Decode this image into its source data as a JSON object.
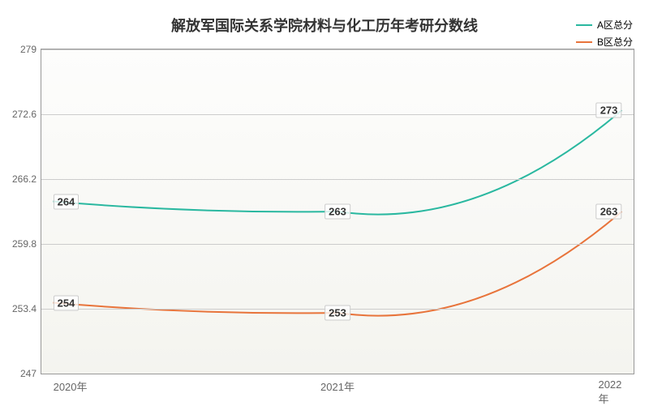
{
  "chart": {
    "title": "解放军国际关系学院材料与化工历年考研分数线",
    "title_fontsize": 18,
    "title_color": "#333333",
    "background_top": "#fdfdfc",
    "background_bottom": "#f4f4ef",
    "border_color": "#999999",
    "grid_color": "#cccccc",
    "ylim": [
      247,
      279
    ],
    "ytick_step": 6.4,
    "yticks": [
      "247",
      "253.4",
      "259.8",
      "266.2",
      "272.6",
      "279"
    ],
    "x_categories": [
      "2020年",
      "2021年",
      "2022年"
    ],
    "series": [
      {
        "name": "A区总分",
        "color": "#2ab8a0",
        "values": [
          264,
          263,
          273
        ],
        "labels": [
          "264",
          "263",
          "273"
        ]
      },
      {
        "name": "B区总分",
        "color": "#e8743b",
        "values": [
          254,
          253,
          263
        ],
        "labels": [
          "254",
          "253",
          "263"
        ]
      }
    ],
    "legend_position": "top-right",
    "label_fontsize": 12,
    "axis_fontsize": 12
  }
}
